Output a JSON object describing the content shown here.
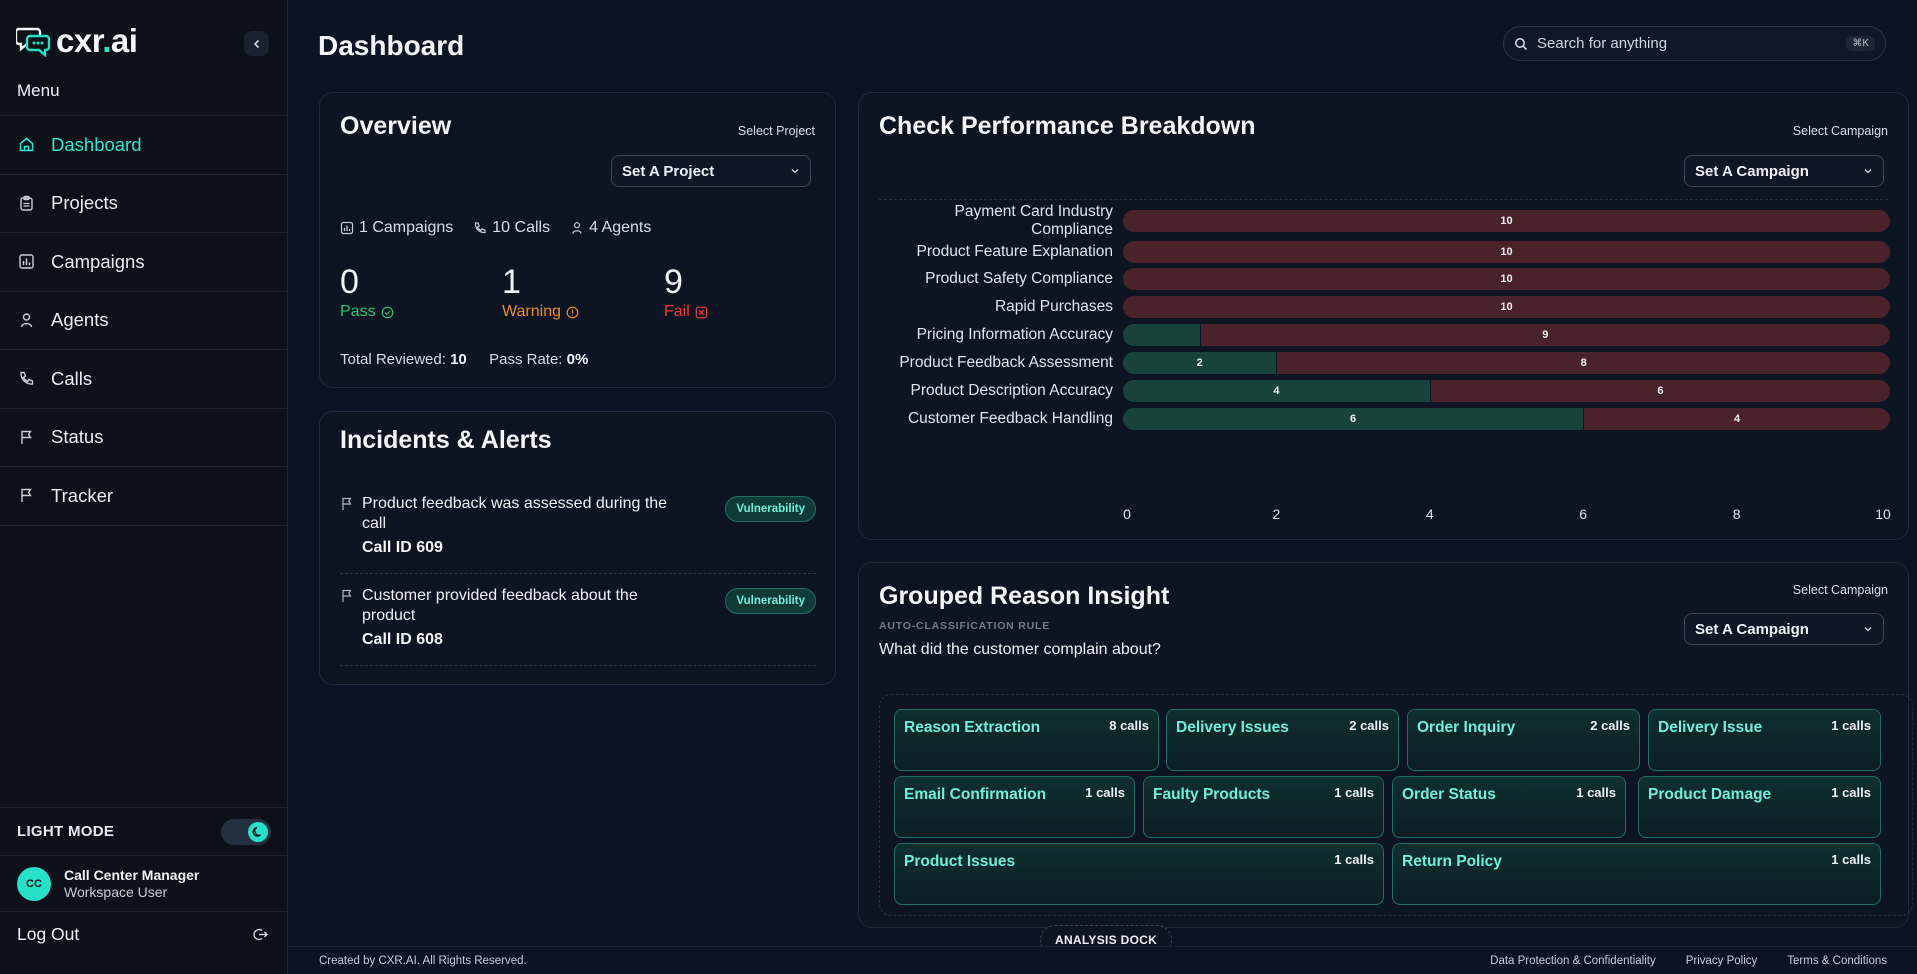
{
  "brand": {
    "name_main": "cxr",
    "name_dot": ".",
    "name_tld": "ai"
  },
  "sidebar": {
    "menu_label": "Menu",
    "items": [
      {
        "label": "Dashboard",
        "icon": "home-icon",
        "active": true
      },
      {
        "label": "Projects",
        "icon": "clipboard-icon",
        "active": false
      },
      {
        "label": "Campaigns",
        "icon": "chart-icon",
        "active": false
      },
      {
        "label": "Agents",
        "icon": "person-icon",
        "active": false
      },
      {
        "label": "Calls",
        "icon": "phone-icon",
        "active": false
      },
      {
        "label": "Status",
        "icon": "flag-icon",
        "active": false
      },
      {
        "label": "Tracker",
        "icon": "flag-icon",
        "active": false
      }
    ],
    "light_mode_label": "LIGHT MODE",
    "user": {
      "initials": "CC",
      "name": "Call Center Manager",
      "role": "Workspace User"
    },
    "logout_label": "Log Out"
  },
  "header": {
    "title": "Dashboard",
    "search_placeholder": "Search for anything",
    "search_shortcut": "⌘K"
  },
  "overview": {
    "title": "Overview",
    "select_label": "Select Project",
    "select_value": "Set A Project",
    "campaigns": "1 Campaigns",
    "calls": "10 Calls",
    "agents": "4 Agents",
    "pass_count": "0",
    "pass_label": "Pass",
    "warning_count": "1",
    "warning_label": "Warning",
    "fail_count": "9",
    "fail_label": "Fail",
    "total_reviewed_label": "Total Reviewed:",
    "total_reviewed_value": "10",
    "pass_rate_label": "Pass Rate:",
    "pass_rate_value": "0%",
    "colors": {
      "pass": "#27c46b",
      "warning": "#f08a24",
      "fail": "#ef3b3b"
    }
  },
  "incidents": {
    "title": "Incidents & Alerts",
    "items": [
      {
        "text": "Product feedback was assessed during the call",
        "call_id": "Call ID 609",
        "badge": "Vulnerability"
      },
      {
        "text": "Customer provided feedback about the product",
        "call_id": "Call ID 608",
        "badge": "Vulnerability"
      }
    ]
  },
  "performance": {
    "title": "Check Performance Breakdown",
    "select_label": "Select Campaign",
    "select_value": "Set A Campaign"
  },
  "chart_data": {
    "type": "bar",
    "orientation": "horizontal",
    "stacked": true,
    "categories": [
      "Payment Card Industry Compliance",
      "Product Feature Explanation",
      "Product Safety Compliance",
      "Rapid Purchases",
      "Pricing Information Accuracy",
      "Product Feedback Assessment",
      "Product Description Accuracy",
      "Customer Feedback Handling"
    ],
    "series": [
      {
        "values": [
          0,
          0,
          0,
          0,
          1,
          2,
          4,
          6
        ],
        "color": "#17433c"
      },
      {
        "values": [
          10,
          10,
          10,
          10,
          9,
          8,
          6,
          4
        ],
        "color": "#4a2229"
      }
    ],
    "xlim": [
      0,
      10
    ],
    "xticks": [
      "0",
      "2",
      "4",
      "6",
      "8",
      "10"
    ],
    "show_segment_labels_min": 2
  },
  "grouped": {
    "title": "Grouped Reason Insight",
    "select_label": "Select Campaign",
    "select_value": "Set A Campaign",
    "subtitle": "AUTO-CLASSIFICATION RULE",
    "question": "What did the customer complain about?",
    "tiles": [
      {
        "name": "Reason Extraction",
        "count": "8 calls"
      },
      {
        "name": "Delivery Issues",
        "count": "2 calls"
      },
      {
        "name": "Order Inquiry",
        "count": "2 calls"
      },
      {
        "name": "Delivery Issue",
        "count": "1 calls"
      },
      {
        "name": "Email Confirmation",
        "count": "1 calls"
      },
      {
        "name": "Faulty Products",
        "count": "1 calls"
      },
      {
        "name": "Order Status",
        "count": "1 calls"
      },
      {
        "name": "Product Damage",
        "count": "1 calls"
      },
      {
        "name": "Product Issues",
        "count": "1 calls"
      },
      {
        "name": "Return Policy",
        "count": "1 calls"
      }
    ]
  },
  "footer": {
    "copyright": "Created by CXR.AI. All Rights Reserved.",
    "links": [
      "Data Protection & Confidentiality",
      "Privacy Policy",
      "Terms & Conditions"
    ],
    "dock_label": "ANALYSIS DOCK"
  }
}
